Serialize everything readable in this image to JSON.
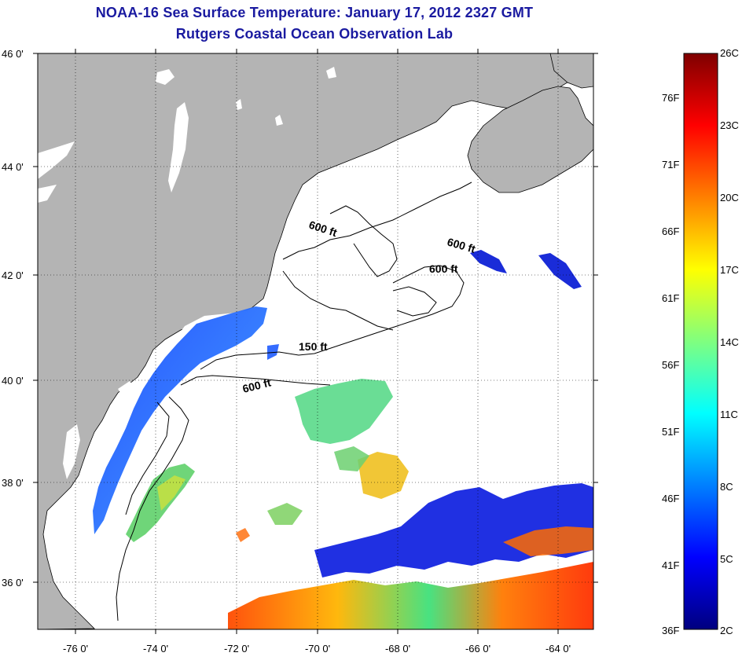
{
  "title": {
    "line1": "NOAA-16 Sea Surface Temperature:  January 17, 2012 2327 GMT",
    "line2": "Rutgers Coastal Ocean Observation Lab"
  },
  "axes": {
    "lat_labels": [
      "46 0'",
      "44 0'",
      "42 0'",
      "40 0'",
      "38 0'",
      "36 0'"
    ],
    "lon_labels": [
      "-76 0'",
      "-74 0'",
      "-72 0'",
      "-70 0'",
      "-68 0'",
      "-66 0'",
      "-64 0'"
    ]
  },
  "contours": {
    "label_600_a": "600 ft",
    "label_600_b": "600 ft",
    "label_600_c": "600 ft",
    "label_150": "150 ft",
    "label_600_d": "600 ft"
  },
  "colorbar": {
    "celsius": [
      "26C",
      "23C",
      "20C",
      "17C",
      "14C",
      "11C",
      "8C",
      "5C",
      "2C"
    ],
    "fahrenheit": [
      "76F",
      "71F",
      "66F",
      "61F",
      "56F",
      "51F",
      "46F",
      "41F",
      "36F"
    ]
  },
  "colors": {
    "land": "#b4b4b4",
    "title": "#1a1aa0"
  }
}
